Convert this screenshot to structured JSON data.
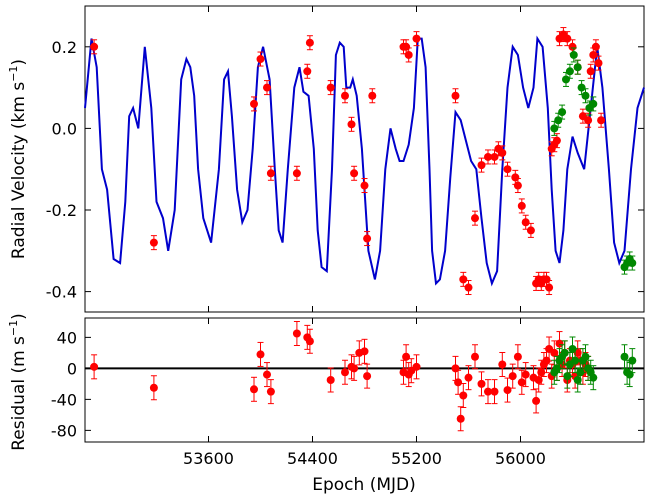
{
  "chart_data": [
    {
      "type": "line",
      "panel": "top",
      "ylabel_main": "Radial Velocity (km s",
      "ylabel_sup": "−1",
      "ylabel_close": ")",
      "ylim": [
        -0.45,
        0.3
      ],
      "xlim": [
        52650,
        56950
      ],
      "yticks": [
        -0.4,
        -0.2,
        0.0,
        0.2
      ],
      "ytick_labels": [
        "-0.4",
        "-0.2",
        "0.0",
        "0.2"
      ],
      "series": [
        {
          "kind": "model",
          "color": "#0000cc",
          "x": [
            52650,
            52700,
            52740,
            52780,
            52820,
            52870,
            52920,
            52960,
            52990,
            53020,
            53060,
            53110,
            53160,
            53200,
            53250,
            53290,
            53340,
            53390,
            53430,
            53460,
            53490,
            53520,
            53560,
            53620,
            53680,
            53720,
            53750,
            53780,
            53820,
            53860,
            53900,
            53940,
            53980,
            54020,
            54070,
            54110,
            54140,
            54170,
            54210,
            54260,
            54300,
            54330,
            54370,
            54410,
            54440,
            54470,
            54510,
            54550,
            54580,
            54610,
            54640,
            54660,
            54690,
            54710,
            54740,
            54780,
            54830,
            54880,
            54920,
            54960,
            55000,
            55040,
            55070,
            55100,
            55140,
            55180,
            55210,
            55240,
            55270,
            55300,
            55320,
            55350,
            55380,
            55420,
            55460,
            55500,
            55540,
            55580,
            55620,
            55660,
            55700,
            55740,
            55780,
            55820,
            55860,
            55900,
            55940,
            55980,
            56020,
            56060,
            56100,
            56130,
            56170,
            56210,
            56240,
            56270,
            56300,
            56330,
            56360,
            56400,
            56440,
            56490,
            56540,
            56590,
            56630,
            56680,
            56720,
            56760,
            56800,
            56850,
            56900,
            56950
          ],
          "y": [
            0.05,
            0.22,
            0.15,
            -0.1,
            -0.15,
            -0.32,
            -0.33,
            -0.18,
            0.03,
            0.05,
            0.0,
            0.2,
            0.05,
            -0.18,
            -0.22,
            -0.3,
            -0.2,
            0.12,
            0.17,
            0.15,
            0.08,
            -0.1,
            -0.22,
            -0.28,
            -0.1,
            0.12,
            0.14,
            0.03,
            -0.15,
            -0.23,
            -0.2,
            -0.05,
            0.15,
            0.2,
            0.12,
            -0.1,
            -0.25,
            -0.28,
            -0.1,
            0.1,
            0.15,
            0.09,
            0.08,
            -0.05,
            -0.25,
            -0.34,
            -0.35,
            -0.1,
            0.18,
            0.21,
            0.2,
            0.1,
            0.1,
            0.12,
            0.08,
            -0.05,
            -0.3,
            -0.37,
            -0.3,
            -0.1,
            0.0,
            -0.05,
            -0.08,
            -0.08,
            -0.04,
            0.05,
            0.22,
            0.22,
            0.15,
            -0.1,
            -0.3,
            -0.38,
            -0.37,
            -0.3,
            -0.12,
            0.04,
            0.02,
            -0.03,
            -0.08,
            -0.1,
            -0.22,
            -0.33,
            -0.38,
            -0.35,
            -0.1,
            0.1,
            0.2,
            0.18,
            0.1,
            0.05,
            0.1,
            0.22,
            0.2,
            0.05,
            -0.15,
            -0.3,
            -0.33,
            -0.25,
            -0.1,
            -0.02,
            -0.06,
            -0.1,
            0.05,
            0.2,
            0.1,
            -0.1,
            -0.28,
            -0.33,
            -0.3,
            -0.1,
            0.05,
            0.1
          ]
        },
        {
          "name": "",
          "color": "#ff0000",
          "x": [
            52720,
            53180,
            53950,
            54000,
            54050,
            54080,
            54280,
            54360,
            54380,
            54540,
            54650,
            54700,
            54720,
            54800,
            54820,
            54860,
            55100,
            55120,
            55140,
            55200,
            55500,
            55560,
            55600,
            55650,
            55700,
            55750,
            55800,
            55830,
            55860,
            55900,
            55960,
            55980,
            56010,
            56040,
            56080,
            56120,
            56140,
            56160,
            56180,
            56200,
            56220,
            56240,
            56260,
            56280,
            56300,
            56330,
            56360,
            56400,
            56440,
            56480,
            56520,
            56540,
            56560,
            56580,
            56600,
            56620
          ],
          "y": [
            0.2,
            -0.28,
            0.06,
            0.17,
            0.1,
            -0.11,
            -0.11,
            0.14,
            0.21,
            0.1,
            0.08,
            0.01,
            -0.11,
            -0.14,
            -0.27,
            0.08,
            0.2,
            0.2,
            0.18,
            0.22,
            0.08,
            -0.37,
            -0.39,
            -0.22,
            -0.09,
            -0.07,
            -0.07,
            -0.05,
            -0.06,
            -0.1,
            -0.12,
            -0.14,
            -0.19,
            -0.23,
            -0.25,
            -0.38,
            -0.37,
            -0.38,
            -0.37,
            -0.37,
            -0.39,
            -0.05,
            -0.04,
            -0.03,
            0.22,
            0.23,
            0.22,
            0.2,
            0.15,
            0.03,
            0.02,
            0.14,
            0.18,
            0.2,
            0.16,
            0.02
          ]
        },
        {
          "name": "",
          "color": "#008800",
          "x": [
            56260,
            56290,
            56320,
            56350,
            56380,
            56410,
            56440,
            56470,
            56500,
            56530,
            56560,
            56800,
            56820,
            56840,
            56860
          ],
          "y": [
            0.0,
            0.02,
            0.04,
            0.12,
            0.14,
            0.18,
            0.15,
            0.1,
            0.08,
            0.05,
            0.06,
            -0.34,
            -0.33,
            -0.32,
            -0.33
          ]
        }
      ]
    },
    {
      "type": "scatter",
      "panel": "bottom",
      "xlabel": "Epoch (MJD)",
      "ylabel_main": "Residual (m s",
      "ylabel_sup": "−1",
      "ylabel_close": ")",
      "ylim": [
        -95,
        65
      ],
      "xlim": [
        52650,
        56950
      ],
      "yticks": [
        -80,
        -40,
        0,
        40
      ],
      "ytick_labels": [
        "-80",
        "-40",
        "0",
        "40"
      ],
      "xticks": [
        53600,
        54400,
        55200,
        56000
      ],
      "xtick_labels": [
        "53600",
        "54400",
        "55200",
        "56000"
      ],
      "series": [
        {
          "name": "",
          "color": "#ff0000",
          "x": [
            52720,
            53180,
            53950,
            54000,
            54050,
            54080,
            54280,
            54360,
            54380,
            54540,
            54650,
            54700,
            54720,
            54760,
            54800,
            54820,
            55100,
            55120,
            55140,
            55160,
            55200,
            55500,
            55520,
            55540,
            55560,
            55600,
            55650,
            55700,
            55750,
            55800,
            55860,
            55900,
            55940,
            55980,
            56010,
            56040,
            56100,
            56120,
            56140,
            56160,
            56180,
            56200,
            56220,
            56240,
            56260,
            56280,
            56300,
            56320,
            56340,
            56360,
            56380,
            56400,
            56420,
            56440,
            56460,
            56480,
            56500,
            56520
          ],
          "y": [
            2,
            -25,
            -27,
            18,
            -8,
            -30,
            45,
            40,
            35,
            -15,
            -5,
            2,
            0,
            20,
            22,
            -10,
            -5,
            15,
            -8,
            -3,
            2,
            0,
            -18,
            -65,
            -35,
            -12,
            15,
            -20,
            -30,
            -30,
            5,
            -28,
            -10,
            15,
            -18,
            -8,
            -12,
            -42,
            -15,
            -5,
            5,
            10,
            25,
            -10,
            20,
            0,
            32,
            5,
            20,
            -15,
            10,
            5,
            -10,
            20,
            10,
            -5,
            5,
            0
          ]
        },
        {
          "name": "",
          "color": "#008800",
          "x": [
            56260,
            56280,
            56300,
            56320,
            56340,
            56360,
            56380,
            56400,
            56420,
            56440,
            56460,
            56480,
            56500,
            56520,
            56540,
            56560,
            56800,
            56820,
            56840,
            56860
          ],
          "y": [
            -5,
            0,
            10,
            15,
            20,
            -10,
            5,
            25,
            10,
            -15,
            -5,
            10,
            15,
            0,
            -5,
            -12,
            15,
            -5,
            -8,
            10
          ]
        }
      ]
    }
  ]
}
